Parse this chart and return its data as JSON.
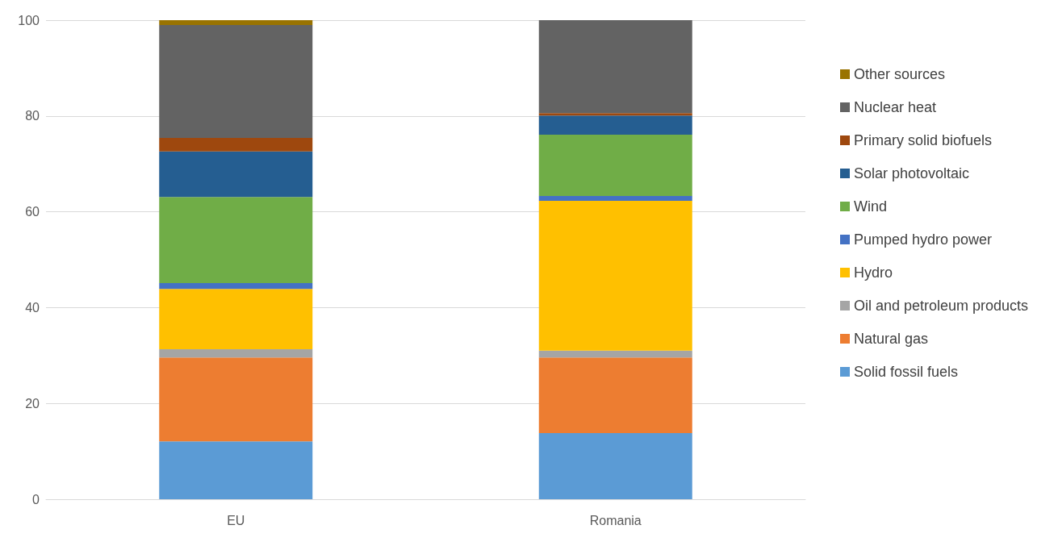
{
  "chart_data": {
    "type": "bar",
    "stacked": true,
    "categories": [
      "EU",
      "Romania"
    ],
    "series": [
      {
        "name": "Solid fossil fuels",
        "color": "#5b9bd5",
        "values": [
          12.1,
          13.8
        ]
      },
      {
        "name": "Natural gas",
        "color": "#ed7d31",
        "values": [
          17.5,
          15.8
        ]
      },
      {
        "name": "Oil and petroleum products",
        "color": "#a5a5a5",
        "values": [
          1.7,
          1.4
        ]
      },
      {
        "name": "Hydro",
        "color": "#ffc000",
        "values": [
          12.6,
          31.3
        ]
      },
      {
        "name": "Pumped hydro power",
        "color": "#4472c4",
        "values": [
          1.2,
          1.0
        ]
      },
      {
        "name": "Wind",
        "color": "#70ad47",
        "values": [
          18.0,
          12.8
        ]
      },
      {
        "name": "Solar photovoltaic",
        "color": "#255e91",
        "values": [
          9.5,
          4.0
        ]
      },
      {
        "name": "Primary solid biofuels",
        "color": "#9e480e",
        "values": [
          2.8,
          0.5
        ]
      },
      {
        "name": "Nuclear heat",
        "color": "#636363",
        "values": [
          23.6,
          19.4
        ]
      },
      {
        "name": "Other sources",
        "color": "#997300",
        "values": [
          1.0,
          0
        ]
      }
    ],
    "ylim": [
      0,
      100
    ],
    "yticks": [
      0,
      20,
      40,
      60,
      80,
      100
    ],
    "grid": "y",
    "legend": "right"
  }
}
